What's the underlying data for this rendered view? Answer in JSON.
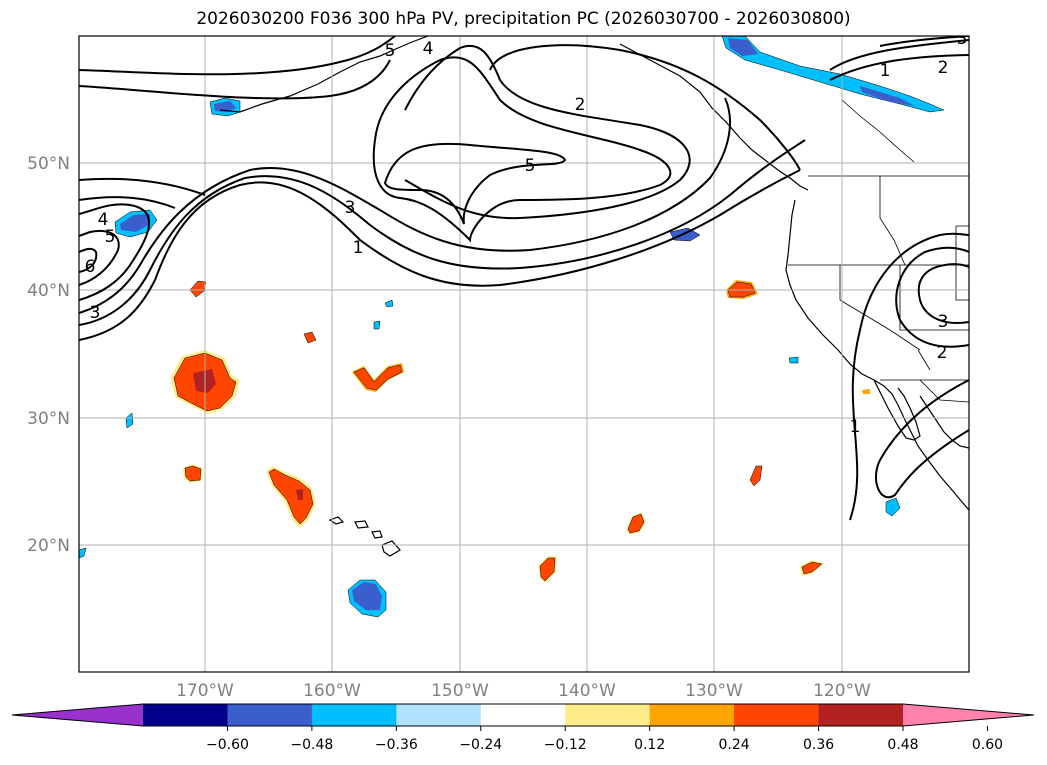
{
  "title": "2026030200 F036 300 hPa PV, precipitation PC (2026030700 - 2026030800)",
  "map": {
    "lat_ticks": [
      "50°N",
      "40°N",
      "30°N",
      "20°N"
    ],
    "lon_ticks": [
      "170°W",
      "160°W",
      "150°W",
      "140°W",
      "130°W",
      "120°W"
    ],
    "tick_color": "#808080"
  },
  "pv_labels": [
    "1",
    "2",
    "3",
    "4",
    "5",
    "6"
  ],
  "colorbar": {
    "ticks": [
      "−0.60",
      "−0.48",
      "−0.36",
      "−0.24",
      "−0.12",
      "0.12",
      "0.24",
      "0.36",
      "0.48",
      "0.60"
    ],
    "colors": [
      "#9932cc",
      "#00008b",
      "#3a5fcd",
      "#00bfff",
      "#b0e2ff",
      "#ffffff",
      "#ffec8b",
      "#ffa500",
      "#ff4500",
      "#b22222",
      "#ff82ab"
    ]
  }
}
